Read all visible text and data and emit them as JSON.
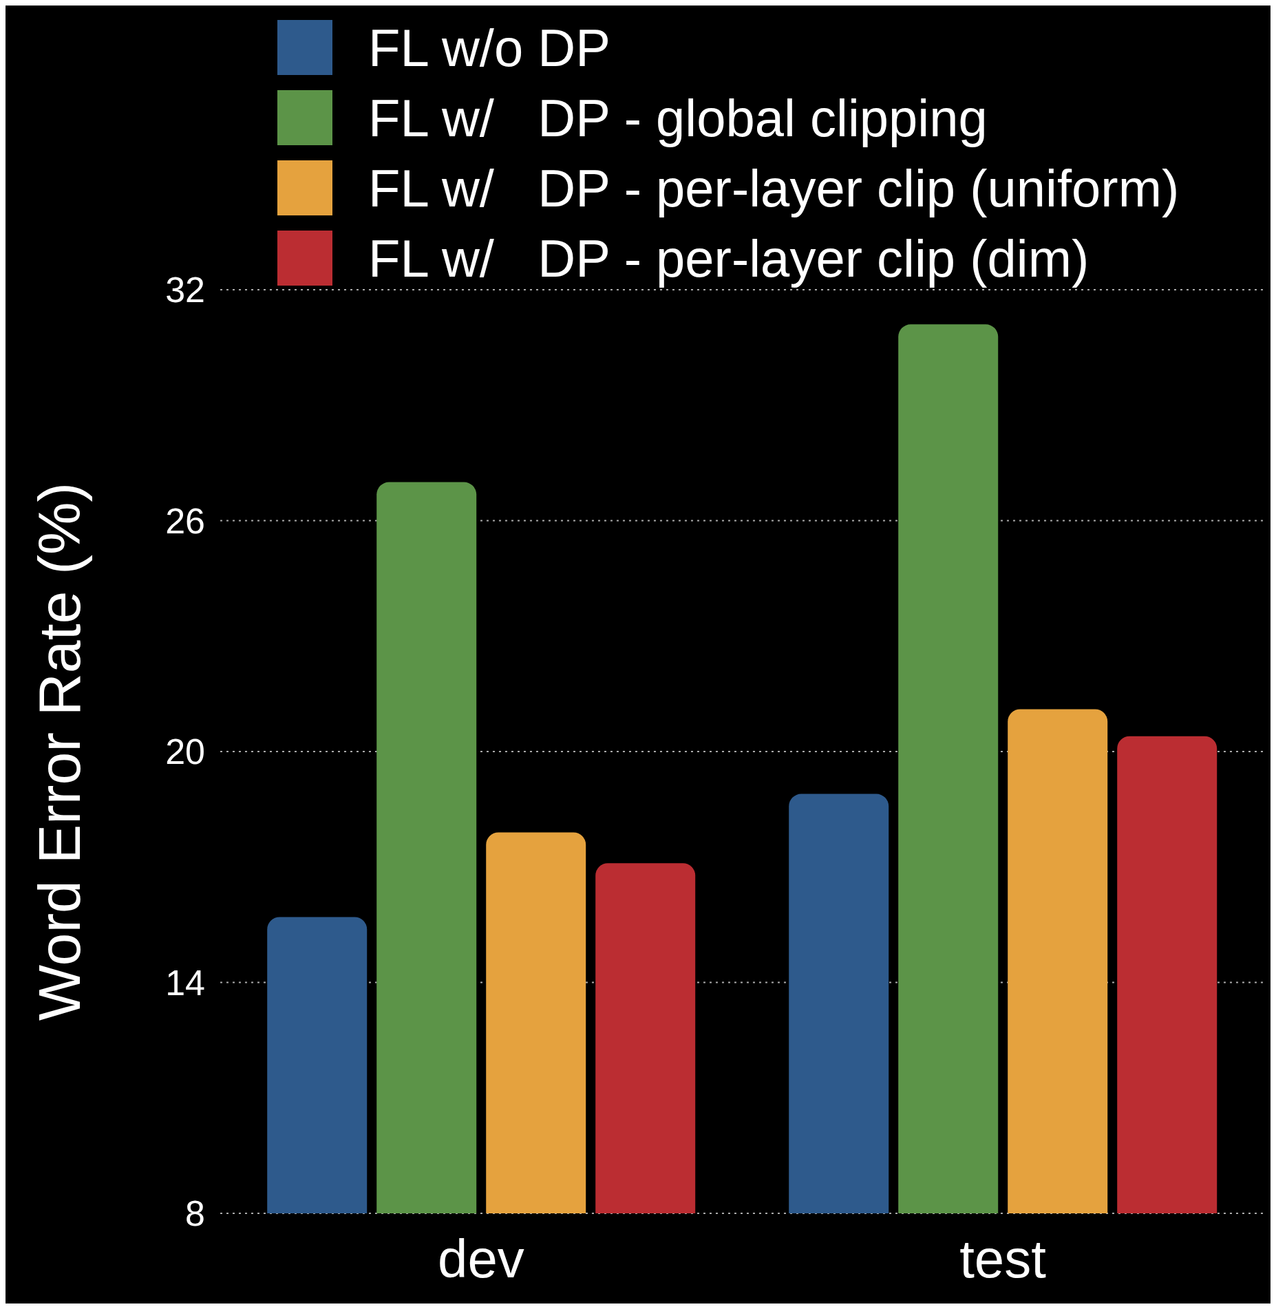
{
  "chart_data": {
    "type": "bar",
    "ylabel": "Word Error Rate (%)",
    "categories": [
      "dev",
      "test"
    ],
    "series": [
      {
        "name": "FL w/o DP",
        "color": "#2e5a8c",
        "values": [
          15.7,
          18.9
        ]
      },
      {
        "name": "FL w/   DP - global clipping",
        "color": "#5c9448",
        "values": [
          27.0,
          31.1
        ]
      },
      {
        "name": "FL w/   DP - per-layer clip (uniform)",
        "color": "#e5a23e",
        "values": [
          17.9,
          21.1
        ]
      },
      {
        "name": "FL w/   DP - per-layer clip (dim)",
        "color": "#bb2d32",
        "values": [
          17.1,
          20.4
        ]
      }
    ],
    "ylim": [
      8,
      32
    ],
    "yticks": [
      8,
      14,
      20,
      26,
      32
    ],
    "grid": "y",
    "legend": "top"
  }
}
